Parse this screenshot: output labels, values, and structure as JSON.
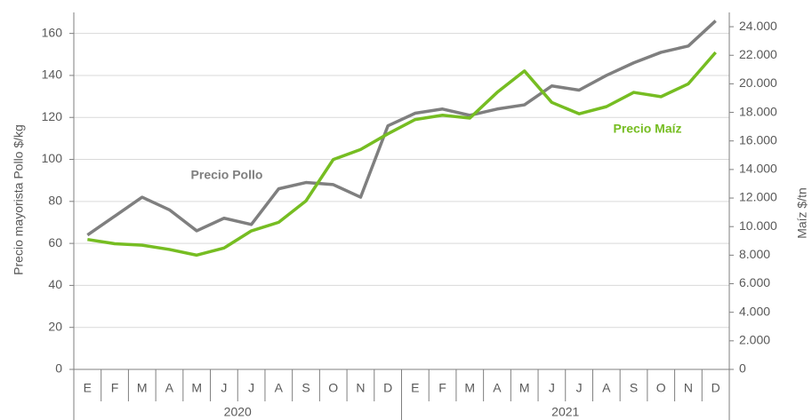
{
  "chart_data": {
    "type": "line",
    "y_label": "Precio mayorista Pollo $/kg",
    "y2_label": "Maíz $/tn",
    "categories": [
      "E",
      "F",
      "M",
      "A",
      "M",
      "J",
      "J",
      "A",
      "S",
      "O",
      "N",
      "D",
      "E",
      "F",
      "M",
      "A",
      "M",
      "J",
      "J",
      "A",
      "S",
      "O",
      "N",
      "D"
    ],
    "x_groups": [
      "2020",
      "2021"
    ],
    "series": [
      {
        "name": "Precio Pollo",
        "color": "#7f7f7f",
        "values": [
          64,
          73,
          82,
          76,
          66,
          72,
          69,
          86,
          89,
          88,
          82,
          116,
          122,
          124,
          121,
          124,
          126,
          135,
          133,
          140,
          146,
          151,
          154,
          166
        ]
      },
      {
        "name": "Precio Maíz",
        "color": "#76bd22",
        "axis": "y2",
        "values": [
          9100,
          8800,
          8700,
          8400,
          8000,
          8500,
          9700,
          10300,
          11800,
          14700,
          15400,
          16500,
          17500,
          17800,
          17600,
          19400,
          20900,
          18700,
          17900,
          18400,
          19400,
          19100,
          20000,
          22200
        ]
      }
    ],
    "ylim": [
      0,
      170
    ],
    "yticks": [
      0,
      20,
      40,
      60,
      80,
      100,
      120,
      140,
      160
    ],
    "y2lim": [
      0,
      25000
    ],
    "y2ticks": [
      0,
      {
        "value": 2000,
        "label": "2.000"
      },
      {
        "value": 4000,
        "label": "4.000"
      },
      {
        "value": 6000,
        "label": "6.000"
      },
      {
        "value": 8000,
        "label": "8.000"
      },
      {
        "value": 10000,
        "label": "10.000"
      },
      {
        "value": 12000,
        "label": "12.000"
      },
      {
        "value": 14000,
        "label": "14.000"
      },
      {
        "value": 16000,
        "label": "16.000"
      },
      {
        "value": 18000,
        "label": "18.000"
      },
      {
        "value": 20000,
        "label": "20.000"
      },
      {
        "value": 22000,
        "label": "22.000"
      },
      {
        "value": 24000,
        "label": "24.000"
      }
    ],
    "grid": true
  }
}
